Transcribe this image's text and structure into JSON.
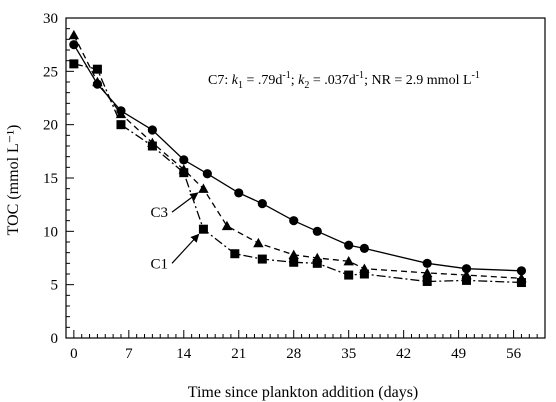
{
  "chart_data": {
    "type": "scatter",
    "xlabel": "Time since plankton addition (days)",
    "ylabel": "TOC (mmol L⁻¹)",
    "xlim": [
      -1,
      60
    ],
    "ylim": [
      0,
      30
    ],
    "xticks": [
      0,
      7,
      14,
      21,
      28,
      35,
      42,
      49,
      56
    ],
    "yticks": [
      0,
      5,
      10,
      15,
      20,
      25,
      30
    ],
    "grid": false,
    "annotation": {
      "prefix": "C7: ",
      "k1_symbol": "k",
      "k1_sub": "1",
      "k1_value": " = .79d",
      "k1_unit_sup": "-1",
      "sep1": "; ",
      "k2_symbol": "k",
      "k2_sub": "2",
      "k2_value": " = .037d",
      "k2_unit_sup": "-1",
      "sep2": "; NR = 2.9 mmol L",
      "nr_unit_sup": "-1"
    },
    "curve_labels": [
      {
        "text": "C3",
        "points_to": [
          16.5,
          14.0
        ],
        "placed_at": [
          12.5,
          11.8
        ]
      },
      {
        "text": "C1",
        "points_to": [
          16.5,
          10.2
        ],
        "placed_at": [
          12.5,
          7.0
        ]
      }
    ],
    "series": [
      {
        "marker": "circle",
        "line": "solid",
        "x": [
          0,
          3,
          6,
          10,
          14,
          17,
          21,
          24,
          28,
          31,
          35,
          37,
          45,
          50,
          57
        ],
        "y": [
          27.5,
          23.8,
          21.3,
          19.5,
          16.7,
          15.4,
          13.6,
          12.6,
          11.0,
          10.0,
          8.7,
          8.4,
          7.0,
          6.5,
          6.3
        ]
      },
      {
        "marker": "triangle",
        "line": "dashed",
        "x": [
          0,
          3,
          6,
          10,
          14,
          16.5,
          19.5,
          23.5,
          28,
          31,
          35,
          37,
          45,
          50,
          57
        ],
        "y": [
          28.4,
          24.0,
          21.0,
          18.3,
          15.8,
          14.0,
          10.5,
          8.9,
          7.8,
          7.5,
          7.2,
          6.5,
          6.1,
          5.9,
          5.6
        ]
      },
      {
        "marker": "square",
        "line": "dash-dot",
        "x": [
          0,
          3,
          6,
          10,
          14,
          16.5,
          20.5,
          24,
          28,
          31,
          35,
          37,
          45,
          50,
          57
        ],
        "y": [
          25.7,
          25.2,
          20.0,
          18.0,
          15.5,
          10.2,
          7.9,
          7.4,
          7.1,
          7.0,
          5.9,
          6.0,
          5.3,
          5.4,
          5.2
        ]
      }
    ]
  }
}
